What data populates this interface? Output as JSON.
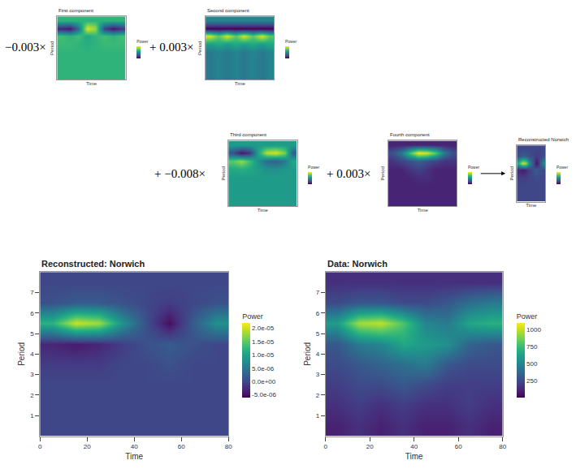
{
  "chart_data": [
    {
      "type": "heatmap",
      "title": "First component",
      "annotation": "−0.003×",
      "x_label": "Time",
      "y_label": "Period",
      "colorbar_title": "Power",
      "tick_labels": false,
      "x": [
        5,
        15,
        25,
        35,
        45,
        55,
        65,
        75
      ],
      "y": [
        0.5,
        1.5,
        2.5,
        3.5,
        4.5,
        5.5,
        6.5,
        7.5
      ],
      "xlim": [
        0,
        80
      ],
      "ylim": [
        0,
        8
      ],
      "zlim": [
        -1,
        1
      ],
      "z": [
        [
          0.3,
          0.3,
          0.3,
          0.3,
          0.3,
          0.3,
          0.3,
          0.3
        ],
        [
          0.3,
          0.3,
          0.3,
          0.3,
          0.3,
          0.3,
          0.3,
          0.3
        ],
        [
          0.3,
          0.3,
          0.3,
          0.3,
          0.3,
          0.3,
          0.3,
          0.3
        ],
        [
          0.3,
          0.3,
          0.3,
          0.3,
          0.3,
          0.3,
          0.3,
          0.3
        ],
        [
          0.35,
          0.35,
          0.3,
          0.25,
          0.3,
          0.35,
          0.35,
          0.35
        ],
        [
          0.4,
          0.3,
          0.4,
          0.2,
          0.3,
          0.4,
          0.3,
          0.4
        ],
        [
          -0.8,
          -0.9,
          -0.3,
          0.9,
          0.7,
          -0.6,
          -0.9,
          -0.7
        ],
        [
          0.3,
          0.3,
          0.3,
          0.3,
          0.3,
          0.3,
          0.3,
          0.3
        ]
      ]
    },
    {
      "type": "heatmap",
      "title": "Second component",
      "annotation": "+ 0.003×",
      "x_label": "Time",
      "y_label": "Period",
      "colorbar_title": "Power",
      "tick_labels": false,
      "x": [
        5,
        15,
        25,
        35,
        45,
        55,
        65,
        75
      ],
      "y": [
        0.5,
        1.5,
        2.5,
        3.5,
        4.5,
        5.5,
        6.5,
        7.5
      ],
      "xlim": [
        0,
        80
      ],
      "ylim": [
        0,
        8
      ],
      "zlim": [
        -1,
        1
      ],
      "z": [
        [
          -0.2,
          -0.1,
          -0.2,
          -0.1,
          -0.2,
          -0.1,
          -0.2,
          -0.1
        ],
        [
          -0.2,
          -0.1,
          -0.2,
          -0.1,
          -0.2,
          -0.1,
          -0.2,
          -0.1
        ],
        [
          -0.2,
          -0.1,
          -0.2,
          -0.1,
          -0.2,
          -0.1,
          -0.2,
          -0.1
        ],
        [
          -0.2,
          -0.1,
          -0.2,
          -0.1,
          -0.2,
          -0.1,
          -0.2,
          -0.1
        ],
        [
          0.1,
          0.2,
          0.1,
          0.2,
          0.1,
          0.2,
          0.1,
          0.2
        ],
        [
          0.9,
          0.5,
          0.9,
          0.5,
          0.9,
          0.5,
          0.9,
          0.5
        ],
        [
          -1,
          -1,
          -1,
          -1,
          -1,
          -1,
          -1,
          -1
        ],
        [
          -0.1,
          -0.1,
          -0.1,
          -0.1,
          -0.1,
          -0.1,
          -0.1,
          -0.1
        ]
      ]
    },
    {
      "type": "heatmap",
      "title": "Third component",
      "annotation": "+ −0.008×",
      "x_label": "Time",
      "y_label": "Period",
      "colorbar_title": "Power",
      "tick_labels": false,
      "x": [
        5,
        15,
        25,
        35,
        45,
        55,
        65,
        75
      ],
      "y": [
        0.5,
        1.5,
        2.5,
        3.5,
        4.5,
        5.5,
        6.5,
        7.5
      ],
      "xlim": [
        0,
        80
      ],
      "ylim": [
        0,
        8
      ],
      "zlim": [
        -1,
        1
      ],
      "z": [
        [
          0.1,
          0.1,
          0.1,
          0.1,
          0.1,
          0.1,
          0.1,
          0.1
        ],
        [
          0.1,
          0.1,
          0.1,
          0.1,
          0.1,
          0.1,
          0.1,
          0.1
        ],
        [
          0.1,
          0.1,
          0.1,
          0.1,
          0.1,
          0.1,
          0.1,
          0.1
        ],
        [
          0.1,
          0.1,
          0.1,
          0.1,
          0.1,
          0.1,
          0.1,
          0.1
        ],
        [
          0.2,
          0.25,
          0.2,
          0.1,
          0.0,
          0.0,
          0.05,
          0.1
        ],
        [
          0.5,
          0.7,
          0.4,
          0.0,
          -0.3,
          -0.4,
          -0.2,
          0.2
        ],
        [
          -0.5,
          -0.9,
          -0.7,
          0.2,
          0.8,
          0.9,
          0.6,
          -0.4
        ],
        [
          0.1,
          0.1,
          0.1,
          0.1,
          0.1,
          0.1,
          0.1,
          0.1
        ]
      ]
    },
    {
      "type": "heatmap",
      "title": "Fourth component",
      "annotation": "+ 0.003×",
      "x_label": "Time",
      "y_label": "Period",
      "colorbar_title": "Power",
      "tick_labels": false,
      "x": [
        5,
        15,
        25,
        35,
        45,
        55,
        65,
        75
      ],
      "y": [
        0.5,
        1.5,
        2.5,
        3.5,
        4.5,
        5.5,
        6.5,
        7.5
      ],
      "xlim": [
        0,
        80
      ],
      "ylim": [
        0,
        8
      ],
      "zlim": [
        -1,
        1
      ],
      "z": [
        [
          -0.8,
          -0.8,
          -0.8,
          -0.8,
          -0.8,
          -0.8,
          -0.8,
          -0.8
        ],
        [
          -0.8,
          -0.8,
          -0.8,
          -0.8,
          -0.8,
          -0.8,
          -0.8,
          -0.8
        ],
        [
          -0.8,
          -0.8,
          -0.8,
          -0.8,
          -0.8,
          -0.8,
          -0.8,
          -0.8
        ],
        [
          -0.8,
          -0.8,
          -0.8,
          -0.75,
          -0.75,
          -0.8,
          -0.8,
          -0.8
        ],
        [
          -0.8,
          -0.8,
          -0.7,
          -0.6,
          -0.7,
          -0.8,
          -0.8,
          -0.8
        ],
        [
          -0.7,
          -0.6,
          -0.5,
          -0.4,
          -0.5,
          -0.6,
          -0.7,
          -0.7
        ],
        [
          -0.5,
          -0.2,
          0.4,
          1,
          0.9,
          0.5,
          -0.2,
          -0.5
        ],
        [
          -0.8,
          -0.8,
          -0.8,
          -0.8,
          -0.8,
          -0.8,
          -0.8,
          -0.8
        ]
      ]
    },
    {
      "type": "heatmap",
      "title": "Reconstructed Norwich",
      "x_label": "Time",
      "y_label": "Period",
      "colorbar_title": "Power",
      "tick_labels": false,
      "x": [
        5,
        15,
        25,
        35,
        45,
        55,
        65,
        75
      ],
      "y": [
        0.5,
        1.5,
        2.5,
        3.5,
        4.5,
        5.5,
        6.5,
        7.5
      ],
      "xlim": [
        0,
        80
      ],
      "ylim": [
        0,
        8
      ],
      "zlim": [
        -6e-06,
        2.2e-05
      ],
      "z": [
        [
          0,
          0,
          0,
          0,
          0,
          0,
          0,
          0
        ],
        [
          0,
          0,
          0,
          0,
          0,
          0,
          0,
          0
        ],
        [
          0,
          0,
          0,
          0,
          0,
          0,
          0,
          0
        ],
        [
          -1e-06,
          -1e-06,
          -1e-06,
          0,
          0,
          1e-06,
          0,
          0
        ],
        [
          -3e-06,
          -4e-06,
          -3e-06,
          -1e-06,
          1e-06,
          2e-06,
          1e-06,
          0
        ],
        [
          1.2e-05,
          2e-05,
          1.8e-05,
          8e-06,
          1e-06,
          -5e-06,
          2e-06,
          8e-06
        ],
        [
          1e-06,
          2e-06,
          2e-06,
          1e-06,
          0,
          -1e-06,
          0,
          1e-06
        ],
        [
          0,
          0,
          0,
          0,
          0,
          0,
          0,
          0
        ]
      ]
    },
    {
      "type": "heatmap",
      "title": "Reconstructed: Norwich",
      "x_label": "Time",
      "y_label": "Period",
      "colorbar_title": "Power",
      "x": [
        5,
        15,
        25,
        35,
        45,
        55,
        65,
        75
      ],
      "y": [
        0.5,
        1.5,
        2.5,
        3.5,
        4.5,
        5.5,
        6.5,
        7.5
      ],
      "xlim": [
        0,
        80
      ],
      "ylim": [
        0,
        8
      ],
      "xticks": [
        0,
        20,
        40,
        60,
        80
      ],
      "yticks": [
        1,
        2,
        3,
        4,
        5,
        6,
        7
      ],
      "zlim": [
        -6e-06,
        2.2e-05
      ],
      "zticks": [
        {
          "value": -5e-06,
          "label": "-5.0e-06"
        },
        {
          "value": 0,
          "label": "0.0e+00"
        },
        {
          "value": 5e-06,
          "label": "5.0e-06"
        },
        {
          "value": 1e-05,
          "label": "1.0e-05"
        },
        {
          "value": 1.5e-05,
          "label": "1.5e-05"
        },
        {
          "value": 2e-05,
          "label": "2.0e-05"
        }
      ],
      "z": [
        [
          0,
          0,
          0,
          0,
          0,
          0,
          0,
          0
        ],
        [
          0,
          0,
          0,
          0,
          0,
          0,
          0,
          0
        ],
        [
          0,
          0,
          0,
          0,
          0,
          0,
          0,
          0
        ],
        [
          -1e-06,
          -1e-06,
          -1e-06,
          0,
          0,
          1e-06,
          0,
          0
        ],
        [
          -3e-06,
          -4e-06,
          -3e-06,
          -1e-06,
          1e-06,
          2e-06,
          1e-06,
          0
        ],
        [
          1.2e-05,
          2e-05,
          1.8e-05,
          8e-06,
          1e-06,
          -5e-06,
          2e-06,
          8e-06
        ],
        [
          1e-06,
          2e-06,
          2e-06,
          1e-06,
          0,
          -1e-06,
          0,
          1e-06
        ],
        [
          0,
          0,
          0,
          0,
          0,
          0,
          0,
          0
        ]
      ]
    },
    {
      "type": "heatmap",
      "title": "Data: Norwich",
      "x_label": "Time",
      "y_label": "Period",
      "colorbar_title": "Power",
      "x": [
        5,
        15,
        25,
        35,
        45,
        55,
        65,
        75
      ],
      "y": [
        0.5,
        1.5,
        2.5,
        3.5,
        4.5,
        5.5,
        6.5,
        7.5
      ],
      "xlim": [
        0,
        80
      ],
      "ylim": [
        0,
        8
      ],
      "xticks": [
        0,
        20,
        40,
        60,
        80
      ],
      "yticks": [
        1,
        2,
        3,
        4,
        5,
        6,
        7
      ],
      "zlim": [
        0,
        1100
      ],
      "zticks": [
        250,
        500,
        750,
        1000
      ],
      "z": [
        [
          100,
          150,
          100,
          150,
          100,
          100,
          150,
          100
        ],
        [
          150,
          200,
          150,
          200,
          150,
          150,
          200,
          150
        ],
        [
          200,
          250,
          250,
          300,
          250,
          200,
          200,
          200
        ],
        [
          250,
          300,
          350,
          400,
          450,
          300,
          250,
          250
        ],
        [
          300,
          450,
          500,
          650,
          600,
          550,
          350,
          300
        ],
        [
          600,
          950,
          1000,
          800,
          500,
          450,
          650,
          700
        ],
        [
          250,
          300,
          300,
          250,
          250,
          300,
          400,
          450
        ],
        [
          150,
          150,
          150,
          150,
          150,
          150,
          150,
          150
        ]
      ]
    }
  ]
}
